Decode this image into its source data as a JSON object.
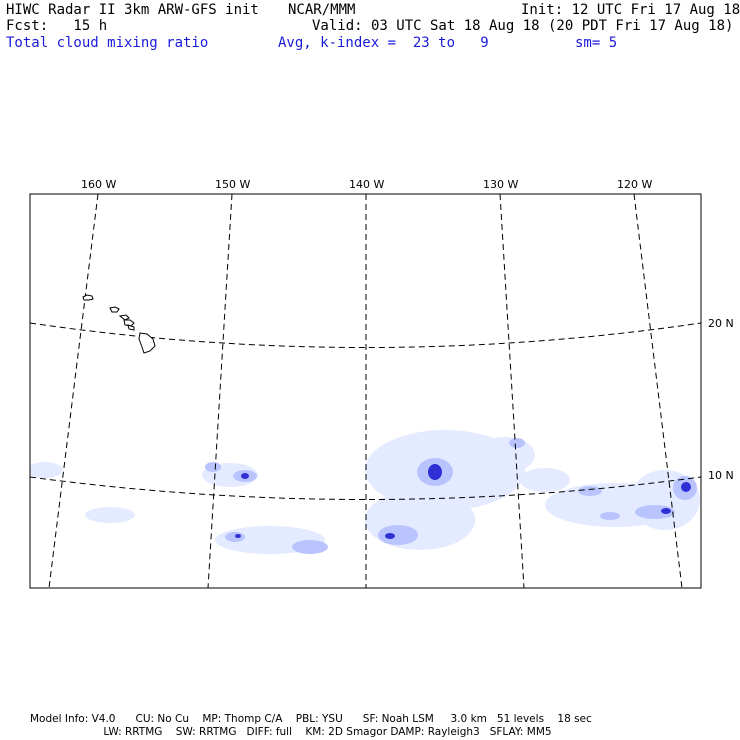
{
  "header": {
    "line1_left": "HIWC Radar II 3km ARW-GFS init",
    "line1_mid": "NCAR/MMM",
    "line1_right": "Init: 12 UTC Fri 17 Aug 18",
    "line2_left": "Fcst:   15 h",
    "line2_right": "Valid: 03 UTC Sat 18 Aug 18 (20 PDT Fri 17 Aug 18)",
    "line3_left": "Total cloud mixing ratio",
    "line3_mid": "Avg, k-index =  23 to   9",
    "line3_right": "sm= 5"
  },
  "map": {
    "lon_labels": [
      "160 W",
      "150 W",
      "140 W",
      "130 W",
      "120 W"
    ],
    "lat_labels": [
      "20 N",
      "10 N"
    ],
    "colors": {
      "cloud_light": "#dfe6ff",
      "cloud_mid": "#9aa8f5",
      "cloud_dark": "#2a2ad8",
      "grid": "#000000"
    }
  },
  "footer": {
    "line1": "Model Info: V4.0      CU: No Cu    MP: Thomp C/A    PBL: YSU      SF: Noah LSM     3.0 km   51 levels    18 sec",
    "line2": "                      LW: RRTMG    SW: RRTMG   DIFF: full    KM: 2D Smagor DAMP: Rayleigh3   SFLAY: MM5"
  }
}
